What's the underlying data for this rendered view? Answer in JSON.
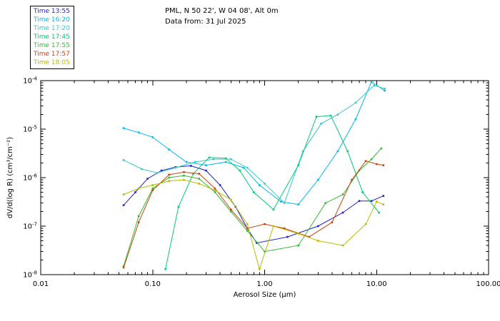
{
  "header": {
    "title_line1": "PML, N 50 22', W 04 08', Alt 0m",
    "title_line2": "Data from: 31 Jul 2025"
  },
  "chart_data": {
    "type": "line",
    "title": "PML, N 50 22', W 04 08', Alt 0m",
    "subtitle": "Data from: 31 Jul 2025",
    "xlabel": "Aerosol Size (μm)",
    "ylabel": "dV/d(log R) (cm³/cm⁻²)",
    "x_scale": "log",
    "y_scale": "log",
    "xlim": [
      0.01,
      100
    ],
    "ylim": [
      1e-08,
      0.0001
    ],
    "x_tick_labels": [
      "0.01",
      "0.10",
      "1.00",
      "10.00",
      "100.00"
    ],
    "y_tick_exponents": [
      -8,
      -7,
      -6,
      -5,
      -4
    ],
    "grid": false,
    "legend_position": "top-left",
    "series": [
      {
        "name": "Time 13:55",
        "color": "#2222cc",
        "points": [
          [
            0.055,
            2.7e-07
          ],
          [
            0.07,
            5e-07
          ],
          [
            0.09,
            9.5e-07
          ],
          [
            0.12,
            1.4e-06
          ],
          [
            0.16,
            1.65e-06
          ],
          [
            0.22,
            1.75e-06
          ],
          [
            0.3,
            1.4e-06
          ],
          [
            0.4,
            7e-07
          ],
          [
            0.55,
            2.5e-07
          ],
          [
            0.7,
            9e-08
          ],
          [
            0.85,
            4.5e-08
          ],
          [
            1.6,
            6e-08
          ],
          [
            3.0,
            1e-07
          ],
          [
            5.0,
            1.9e-07
          ],
          [
            7.0,
            3.3e-07
          ],
          [
            9.0,
            3.3e-07
          ],
          [
            11.5,
            4.2e-07
          ]
        ]
      },
      {
        "name": "Time 16:20",
        "color": "#00bbee",
        "points": [
          [
            0.055,
            1.05e-05
          ],
          [
            0.075,
            8.5e-06
          ],
          [
            0.1,
            6.8e-06
          ],
          [
            0.14,
            3.8e-06
          ],
          [
            0.2,
            2.1e-06
          ],
          [
            0.3,
            1.8e-06
          ],
          [
            0.45,
            2.1e-06
          ],
          [
            0.65,
            1.6e-06
          ],
          [
            0.9,
            7e-07
          ],
          [
            1.4,
            3.2e-07
          ],
          [
            2.0,
            2.8e-07
          ],
          [
            3.0,
            9e-07
          ],
          [
            4.5,
            3.5e-06
          ],
          [
            6.5,
            1.6e-05
          ],
          [
            9.0,
            9.5e-05
          ],
          [
            11.8,
            6.2e-05
          ]
        ]
      },
      {
        "name": "Time 17:20",
        "color": "#33cccc",
        "points": [
          [
            0.055,
            2.3e-06
          ],
          [
            0.08,
            1.5e-06
          ],
          [
            0.11,
            1.25e-06
          ],
          [
            0.16,
            1.6e-06
          ],
          [
            0.24,
            2.1e-06
          ],
          [
            0.35,
            2.4e-06
          ],
          [
            0.5,
            2.4e-06
          ],
          [
            0.7,
            1.6e-06
          ],
          [
            1.0,
            7.5e-07
          ],
          [
            1.5,
            3e-07
          ],
          [
            2.2,
            3.5e-06
          ],
          [
            3.2,
            1.3e-05
          ],
          [
            4.5,
            2e-05
          ],
          [
            6.5,
            3.5e-05
          ],
          [
            9.5,
            8e-05
          ],
          [
            11.8,
            6.8e-05
          ]
        ]
      },
      {
        "name": "Time 17:45",
        "color": "#00cc77",
        "points": [
          [
            0.13,
            1.3e-08
          ],
          [
            0.17,
            2.5e-07
          ],
          [
            0.23,
            1.2e-06
          ],
          [
            0.32,
            2.6e-06
          ],
          [
            0.45,
            2.5e-06
          ],
          [
            0.6,
            1.4e-06
          ],
          [
            0.8,
            5e-07
          ],
          [
            1.2,
            2.2e-07
          ],
          [
            2.0,
            1.8e-06
          ],
          [
            2.9,
            1.8e-05
          ],
          [
            3.9,
            1.9e-05
          ],
          [
            5.5,
            3.5e-06
          ],
          [
            7.5,
            5e-07
          ],
          [
            10.5,
            1.9e-07
          ]
        ]
      },
      {
        "name": "Time 17:55",
        "color": "#33bb33",
        "points": [
          [
            0.055,
            1.5e-08
          ],
          [
            0.075,
            1.6e-07
          ],
          [
            0.1,
            6e-07
          ],
          [
            0.14,
            1e-06
          ],
          [
            0.19,
            1.1e-06
          ],
          [
            0.26,
            9.5e-07
          ],
          [
            0.36,
            5e-07
          ],
          [
            0.5,
            2e-07
          ],
          [
            0.7,
            8e-08
          ],
          [
            1.0,
            3e-08
          ],
          [
            2.0,
            4e-08
          ],
          [
            3.5,
            3e-07
          ],
          [
            5.0,
            4.5e-07
          ],
          [
            7.0,
            1.4e-06
          ],
          [
            9.0,
            2.4e-06
          ],
          [
            11.0,
            4e-06
          ]
        ]
      },
      {
        "name": "Time 17:57",
        "color": "#cc4411",
        "points": [
          [
            0.055,
            1.4e-08
          ],
          [
            0.075,
            1.2e-07
          ],
          [
            0.1,
            5.5e-07
          ],
          [
            0.14,
            1.15e-06
          ],
          [
            0.19,
            1.3e-06
          ],
          [
            0.26,
            1.2e-06
          ],
          [
            0.36,
            6e-07
          ],
          [
            0.5,
            2.2e-07
          ],
          [
            0.7,
            9e-08
          ],
          [
            1.0,
            1.1e-07
          ],
          [
            1.5,
            9e-08
          ],
          [
            2.5,
            6e-08
          ],
          [
            4.0,
            1.2e-07
          ],
          [
            6.0,
            9e-07
          ],
          [
            8.0,
            2.2e-06
          ],
          [
            10.0,
            1.9e-06
          ],
          [
            11.5,
            1.8e-06
          ]
        ]
      },
      {
        "name": "Time 18:05",
        "color": "#bbbb00",
        "points": [
          [
            0.055,
            4.5e-07
          ],
          [
            0.075,
            6e-07
          ],
          [
            0.1,
            7e-07
          ],
          [
            0.14,
            8.5e-07
          ],
          [
            0.19,
            9e-07
          ],
          [
            0.26,
            7.5e-07
          ],
          [
            0.36,
            5.5e-07
          ],
          [
            0.5,
            3.5e-07
          ],
          [
            0.7,
            1.1e-07
          ],
          [
            0.9,
            1.3e-08
          ],
          [
            1.2,
            1e-07
          ],
          [
            2.0,
            7e-08
          ],
          [
            3.0,
            5e-08
          ],
          [
            5.0,
            4e-08
          ],
          [
            8.0,
            1.1e-07
          ],
          [
            10.0,
            3.2e-07
          ],
          [
            11.5,
            2.8e-07
          ]
        ]
      }
    ]
  }
}
